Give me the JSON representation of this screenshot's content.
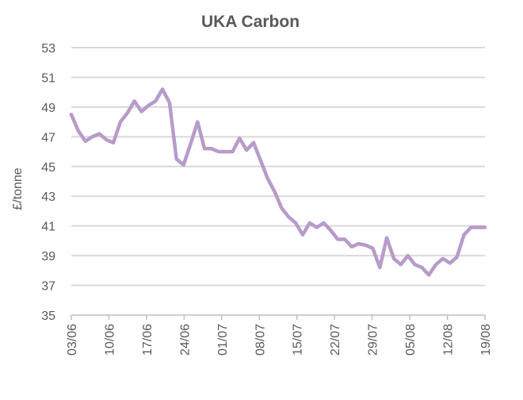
{
  "chart_data": {
    "type": "line",
    "title": "UKA Carbon",
    "ylabel": "£/tonne",
    "xlabel": "",
    "ylim": [
      35,
      53
    ],
    "yticks": [
      35,
      37,
      39,
      41,
      43,
      45,
      47,
      49,
      51,
      53
    ],
    "xtick_labels": [
      "03/06",
      "10/06",
      "17/06",
      "24/06",
      "01/07",
      "08/07",
      "15/07",
      "22/07",
      "29/07",
      "05/08",
      "12/08",
      "19/08"
    ],
    "grid": true,
    "legend": "none",
    "colors": {
      "series": "#b79bc9",
      "grid": "#d9d9d9",
      "text": "#595959"
    },
    "series": [
      {
        "values": [
          48.5,
          47.4,
          46.7,
          47.0,
          47.2,
          46.8,
          46.6,
          48.0,
          48.6,
          49.4,
          48.7,
          49.1,
          49.4,
          50.2,
          49.3,
          45.5,
          45.1,
          46.5,
          48.0,
          46.2,
          46.2,
          46.0,
          46.0,
          46.0,
          46.9,
          46.1,
          46.6,
          45.4,
          44.2,
          43.3,
          42.2,
          41.6,
          41.2,
          40.4,
          41.2,
          40.9,
          41.2,
          40.7,
          40.1,
          40.1,
          39.6,
          39.8,
          39.7,
          39.5,
          38.2,
          40.2,
          38.8,
          38.4,
          39.0,
          38.4,
          38.2,
          37.7,
          38.4,
          38.8,
          38.5,
          38.9,
          40.4,
          40.9,
          40.9,
          40.9
        ]
      }
    ]
  }
}
